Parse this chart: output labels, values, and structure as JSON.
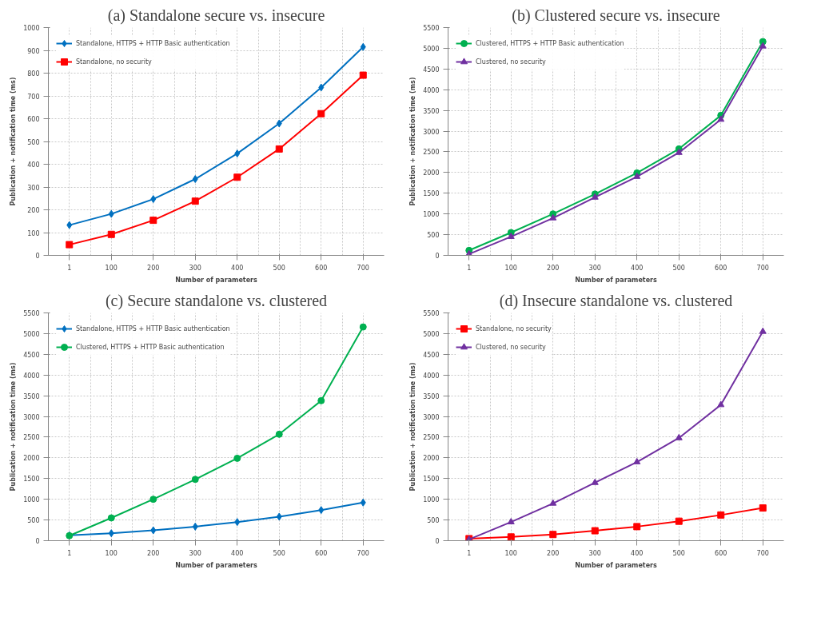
{
  "chart_data": [
    {
      "type": "line",
      "title": "(a) Standalone secure vs. insecure",
      "xlabel": "Number of parameters",
      "ylabel": "Publication + notification time (ms)",
      "categories": [
        "1",
        "100",
        "200",
        "300",
        "400",
        "500",
        "600",
        "700"
      ],
      "ylim": [
        0,
        1000
      ],
      "yticks": [
        0,
        100,
        200,
        300,
        400,
        500,
        600,
        700,
        800,
        900,
        1000
      ],
      "grid": true,
      "legend": "top left",
      "series": [
        {
          "name": "Standalone, HTTPS + HTTP Basic authentication",
          "color": "#0070c0",
          "marker": "diamond",
          "values": [
            133,
            182,
            247,
            335,
            447,
            579,
            737,
            915
          ]
        },
        {
          "name": "Standalone, no security",
          "color": "#ff0000",
          "marker": "square",
          "values": [
            47,
            92,
            154,
            238,
            343,
            467,
            622,
            791
          ]
        }
      ]
    },
    {
      "type": "line",
      "title": "(b) Clustered secure vs. insecure",
      "xlabel": "Number of parameters",
      "ylabel": "Publication + notification time (ms)",
      "categories": [
        "1",
        "100",
        "200",
        "300",
        "400",
        "500",
        "600",
        "700"
      ],
      "ylim": [
        0,
        5500
      ],
      "yticks": [
        0,
        500,
        1000,
        1500,
        2000,
        2500,
        3000,
        3500,
        4000,
        4500,
        5000,
        5500
      ],
      "grid": true,
      "legend": "top left",
      "series": [
        {
          "name": "Clustered, HTTPS + HTTP Basic authentication",
          "color": "#00b050",
          "marker": "circle",
          "values": [
            120,
            550,
            1000,
            1480,
            1990,
            2570,
            3380,
            5160
          ]
        },
        {
          "name": "Clustered, no security",
          "color": "#7030a0",
          "marker": "triangle",
          "values": [
            30,
            450,
            900,
            1400,
            1900,
            2480,
            3280,
            5050
          ]
        }
      ]
    },
    {
      "type": "line",
      "title": "(c) Secure standalone vs. clustered",
      "xlabel": "Number of parameters",
      "ylabel": "Publication + notification time (ms)",
      "categories": [
        "1",
        "100",
        "200",
        "300",
        "400",
        "500",
        "600",
        "700"
      ],
      "ylim": [
        0,
        5500
      ],
      "yticks": [
        0,
        500,
        1000,
        1500,
        2000,
        2500,
        3000,
        3500,
        4000,
        4500,
        5000,
        5500
      ],
      "grid": true,
      "legend": "top left",
      "series": [
        {
          "name": "Standalone, HTTPS + HTTP Basic authentication",
          "color": "#0070c0",
          "marker": "diamond",
          "values": [
            130,
            180,
            250,
            340,
            450,
            580,
            740,
            920
          ]
        },
        {
          "name": "Clustered, HTTPS + HTTP Basic authentication",
          "color": "#00b050",
          "marker": "circle",
          "values": [
            120,
            550,
            1000,
            1480,
            1990,
            2570,
            3380,
            5160
          ]
        }
      ]
    },
    {
      "type": "line",
      "title": "(d) Insecure standalone vs. clustered",
      "xlabel": "Number of parameters",
      "ylabel": "Publication + notification time (ms)",
      "categories": [
        "1",
        "100",
        "200",
        "300",
        "400",
        "500",
        "600",
        "700"
      ],
      "ylim": [
        0,
        5500
      ],
      "yticks": [
        0,
        500,
        1000,
        1500,
        2000,
        2500,
        3000,
        3500,
        4000,
        4500,
        5000,
        5500
      ],
      "grid": true,
      "legend": "top left",
      "series": [
        {
          "name": "Standalone, no security",
          "color": "#ff0000",
          "marker": "square",
          "values": [
            50,
            90,
            150,
            240,
            340,
            470,
            620,
            790
          ]
        },
        {
          "name": "Clustered, no security",
          "color": "#7030a0",
          "marker": "triangle",
          "values": [
            30,
            450,
            900,
            1400,
            1900,
            2480,
            3280,
            5050
          ]
        }
      ]
    }
  ]
}
